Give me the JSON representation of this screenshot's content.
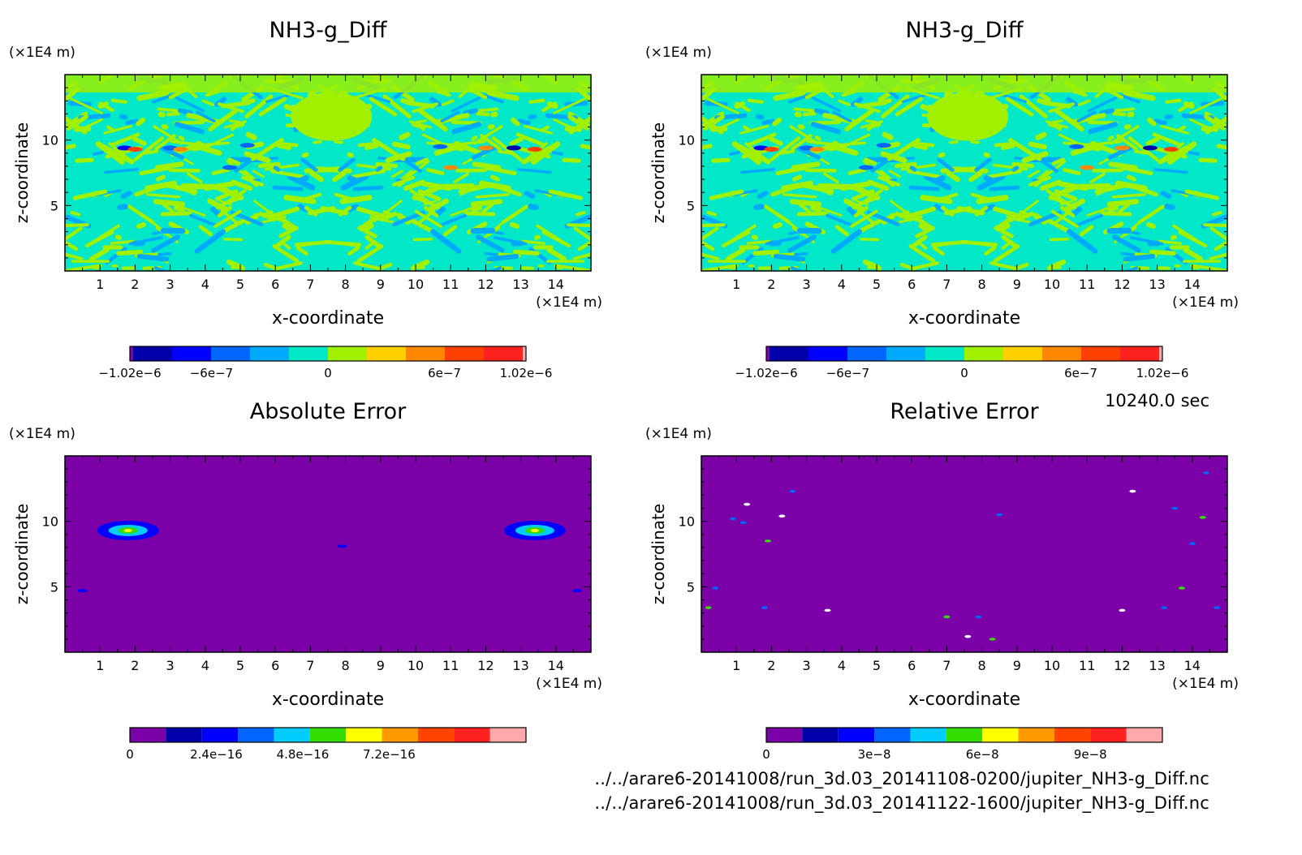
{
  "time_label": "10240.0 sec",
  "source_files": [
    "../../arare6-20141008/run_3d.03_20141108-0200/jupiter_NH3-g_Diff.nc",
    "../../arare6-20141008/run_3d.03_20141122-1600/jupiter_NH3-g_Diff.nc"
  ],
  "chart_data": [
    {
      "type": "heatmap",
      "title": "NH3-g_Diff",
      "xlabel": "x-coordinate",
      "ylabel": "z-coordinate",
      "x_unit": "(×1E4 m)",
      "z_unit": "(×1E4 m)",
      "xlim": [
        0,
        15
      ],
      "ylim": [
        0,
        15
      ],
      "x_ticks": [
        1,
        2,
        3,
        4,
        5,
        6,
        7,
        8,
        9,
        10,
        11,
        12,
        13,
        14
      ],
      "y_ticks": [
        5,
        10
      ],
      "field": "stripes",
      "colorbar": {
        "min": -1.02e-06,
        "max": 1.02e-06,
        "colors": [
          "#8800aa",
          "#0000aa",
          "#0000ff",
          "#0066ff",
          "#00aaff",
          "#00e8c8",
          "#a0f000",
          "#ffd000",
          "#ff8800",
          "#ff4000",
          "#ff2020",
          "#ffaaaa"
        ],
        "ticks": [
          -1.02e-06,
          -6e-07,
          0,
          6e-07,
          1.02e-06
        ],
        "tick_labels": [
          "−1.02e−6",
          "−6e−7",
          "0",
          "6e−7",
          "1.02e−6"
        ]
      }
    },
    {
      "type": "heatmap",
      "title": "NH3-g_Diff",
      "xlabel": "x-coordinate",
      "ylabel": "z-coordinate",
      "x_unit": "(×1E4 m)",
      "z_unit": "(×1E4 m)",
      "xlim": [
        0,
        15
      ],
      "ylim": [
        0,
        15
      ],
      "x_ticks": [
        1,
        2,
        3,
        4,
        5,
        6,
        7,
        8,
        9,
        10,
        11,
        12,
        13,
        14
      ],
      "y_ticks": [
        5,
        10
      ],
      "field": "stripes",
      "colorbar": {
        "min": -1.02e-06,
        "max": 1.02e-06,
        "colors": [
          "#8800aa",
          "#0000aa",
          "#0000ff",
          "#0066ff",
          "#00aaff",
          "#00e8c8",
          "#a0f000",
          "#ffd000",
          "#ff8800",
          "#ff4000",
          "#ff2020",
          "#ffaaaa"
        ],
        "ticks": [
          -1.02e-06,
          -6e-07,
          0,
          6e-07,
          1.02e-06
        ],
        "tick_labels": [
          "−1.02e−6",
          "−6e−7",
          "0",
          "6e−7",
          "1.02e−6"
        ]
      }
    },
    {
      "type": "heatmap",
      "title": "Absolute Error",
      "xlabel": "x-coordinate",
      "ylabel": "z-coordinate",
      "x_unit": "(×1E4 m)",
      "z_unit": "(×1E4 m)",
      "xlim": [
        0,
        15
      ],
      "ylim": [
        0,
        15
      ],
      "x_ticks": [
        1,
        2,
        3,
        4,
        5,
        6,
        7,
        8,
        9,
        10,
        11,
        12,
        13,
        14
      ],
      "y_ticks": [
        5,
        10
      ],
      "field": "blobs",
      "background_color": "#7b00a8",
      "features": [
        {
          "x": 1.8,
          "z": 9.3,
          "level": "high"
        },
        {
          "x": 13.4,
          "z": 9.3,
          "level": "high"
        },
        {
          "x": 0.5,
          "z": 4.7,
          "level": "low"
        },
        {
          "x": 14.6,
          "z": 4.7,
          "level": "low"
        },
        {
          "x": 7.9,
          "z": 8.1,
          "level": "low"
        }
      ],
      "colorbar": {
        "min": 0,
        "max": 1.1e-15,
        "colors": [
          "#7b00a8",
          "#0000aa",
          "#0000ff",
          "#0066ff",
          "#00ccff",
          "#33dd00",
          "#ffff00",
          "#ff9900",
          "#ff4400",
          "#ff2020",
          "#ffaaaa"
        ],
        "ticks": [
          0,
          2.4e-16,
          4.8e-16,
          7.2e-16
        ],
        "tick_labels": [
          "0",
          "2.4e−16",
          "4.8e−16",
          "7.2e−16"
        ]
      }
    },
    {
      "type": "heatmap",
      "title": "Relative Error",
      "xlabel": "x-coordinate",
      "ylabel": "z-coordinate",
      "x_unit": "(×1E4 m)",
      "z_unit": "(×1E4 m)",
      "xlim": [
        0,
        15
      ],
      "ylim": [
        0,
        15
      ],
      "x_ticks": [
        1,
        2,
        3,
        4,
        5,
        6,
        7,
        8,
        9,
        10,
        11,
        12,
        13,
        14
      ],
      "y_ticks": [
        5,
        10
      ],
      "field": "dots",
      "background_color": "#7b00a8",
      "features": [
        {
          "x": 1.3,
          "z": 11.3
        },
        {
          "x": 2.6,
          "z": 12.3
        },
        {
          "x": 0.9,
          "z": 10.2
        },
        {
          "x": 1.9,
          "z": 8.5
        },
        {
          "x": 2.3,
          "z": 10.4
        },
        {
          "x": 0.4,
          "z": 4.9
        },
        {
          "x": 0.2,
          "z": 3.4
        },
        {
          "x": 1.8,
          "z": 3.4
        },
        {
          "x": 3.6,
          "z": 3.2
        },
        {
          "x": 7.0,
          "z": 2.7
        },
        {
          "x": 7.9,
          "z": 2.7
        },
        {
          "x": 8.5,
          "z": 10.5
        },
        {
          "x": 12.3,
          "z": 12.3
        },
        {
          "x": 13.5,
          "z": 11.0
        },
        {
          "x": 14.4,
          "z": 13.7
        },
        {
          "x": 14.3,
          "z": 10.3
        },
        {
          "x": 12.0,
          "z": 3.2
        },
        {
          "x": 13.2,
          "z": 3.4
        },
        {
          "x": 13.7,
          "z": 4.9
        },
        {
          "x": 14.7,
          "z": 3.4
        },
        {
          "x": 7.6,
          "z": 1.2
        },
        {
          "x": 8.3,
          "z": 1.0
        },
        {
          "x": 1.2,
          "z": 9.9
        },
        {
          "x": 14.0,
          "z": 8.3
        }
      ],
      "colorbar": {
        "min": 0,
        "max": 1.1e-07,
        "colors": [
          "#7b00a8",
          "#0000aa",
          "#0000ff",
          "#0066ff",
          "#00ccff",
          "#33dd00",
          "#ffff00",
          "#ff9900",
          "#ff4400",
          "#ff2020",
          "#ffaaaa"
        ],
        "ticks": [
          0,
          3e-08,
          6e-08,
          9e-08
        ],
        "tick_labels": [
          "0",
          "3e−8",
          "6e−8",
          "9e−8"
        ]
      }
    }
  ]
}
